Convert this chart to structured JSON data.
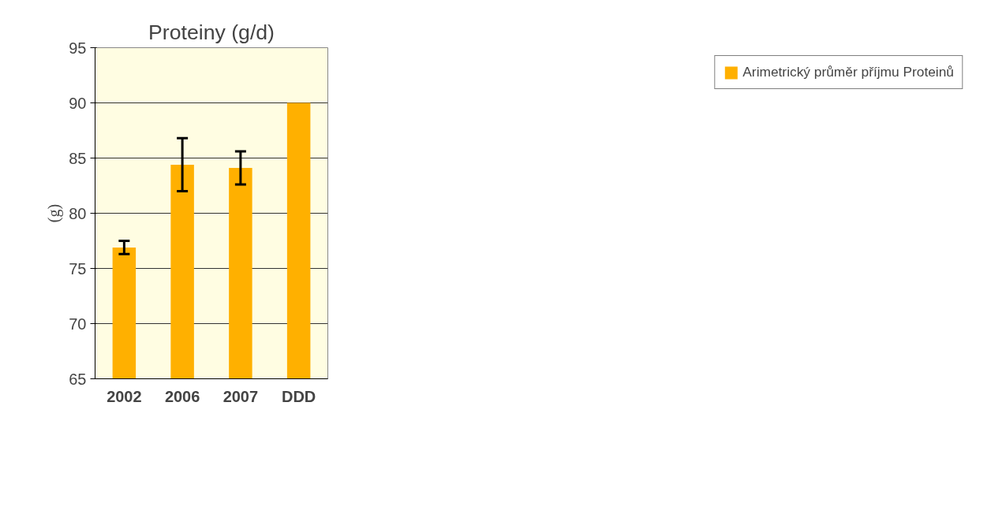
{
  "chart_data": {
    "type": "bar",
    "title": "Proteiny (g/d)",
    "ylabel": "(g)",
    "categories": [
      "2002",
      "2006",
      "2007",
      "DDD"
    ],
    "series": [
      {
        "name": "Arimetrický průměr příjmu Proteinů",
        "color": "#ffb000",
        "values": [
          76.9,
          84.4,
          84.1,
          90
        ],
        "errors": [
          0.6,
          2.4,
          1.5,
          null
        ]
      }
    ],
    "ylim": [
      65,
      95
    ],
    "yticks": [
      65,
      70,
      75,
      80,
      85,
      90,
      95
    ],
    "grid": "y",
    "legend": "right"
  }
}
